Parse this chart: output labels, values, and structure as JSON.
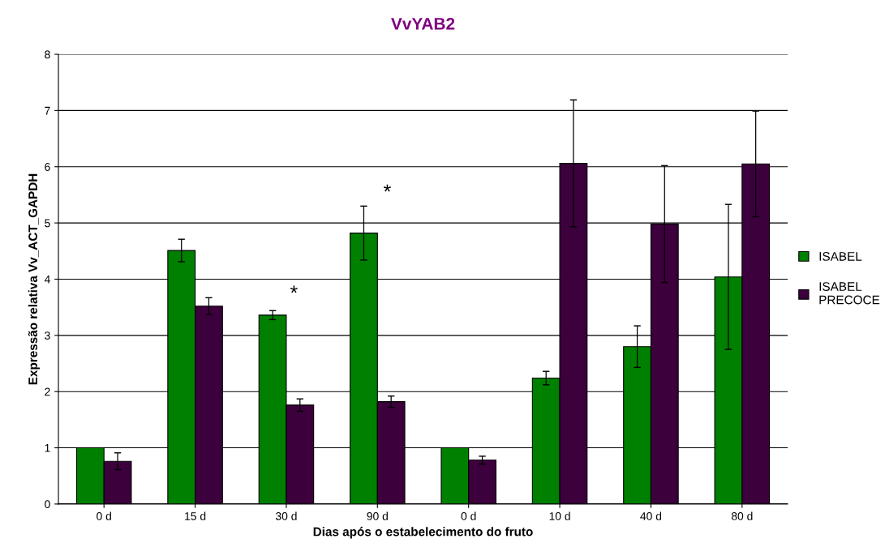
{
  "chart_data": {
    "type": "bar",
    "title": "VvYAB2",
    "xlabel": "Dias após o estabelecimento do fruto",
    "ylabel": "Expressão relativa Vv_ACT_GAPDH",
    "categories": [
      "0 d",
      "15 d",
      "30 d",
      "90 d",
      "0 d",
      "10 d",
      "40 d",
      "80 d"
    ],
    "series": [
      {
        "name": "ISABEL",
        "color": "#008000",
        "values": [
          1.0,
          4.51,
          3.36,
          4.82,
          1.0,
          2.24,
          2.8,
          4.04
        ],
        "errors": [
          null,
          0.2,
          0.08,
          0.48,
          null,
          0.12,
          0.37,
          1.29
        ]
      },
      {
        "name": "ISABEL PRECOCE",
        "color": "#3c003c",
        "values": [
          0.76,
          3.52,
          1.76,
          1.82,
          0.78,
          6.06,
          4.98,
          6.05
        ],
        "errors": [
          0.15,
          0.15,
          0.11,
          0.1,
          0.07,
          1.13,
          1.04,
          0.94
        ]
      }
    ],
    "annotations": [
      "*",
      "*"
    ],
    "ylim": [
      0,
      8
    ],
    "yticks": [
      0,
      1,
      2,
      3,
      4,
      5,
      6,
      7,
      8
    ],
    "grid": "y",
    "legend": "right"
  }
}
